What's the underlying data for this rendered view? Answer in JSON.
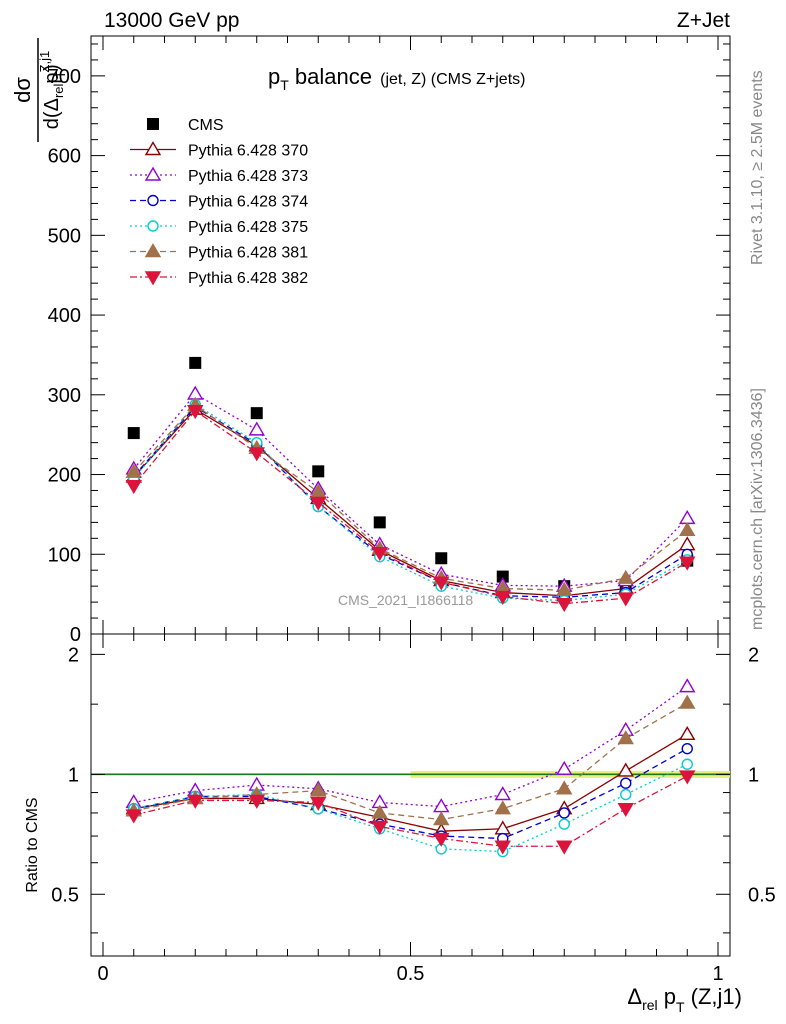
{
  "header": {
    "energy_label": "13000 GeV pp",
    "process_label": "Z+Jet"
  },
  "side_labels": {
    "rivet": "Rivet 3.1.10, ≥ 2.5M events",
    "mcplots": "mcplots.cern.ch [arXiv:1306.3436]"
  },
  "plot_title": {
    "main": "p",
    "main_sub": "T",
    "main_rest": " balance",
    "small": "(jet, Z) (CMS Z+jets)"
  },
  "watermark": "CMS_2021_I1866118",
  "top_ylabel": {
    "num": "dσ",
    "den_pre": "d(Δ",
    "den_sub": "rel",
    "den_mid": "p",
    "den_sub2": "T",
    "den_sup": "Z,j1",
    "den_end": ")"
  },
  "bottom_ylabel": "Ratio to CMS",
  "xlabel": {
    "pre": "Δ",
    "sub": "rel",
    "mid": " p",
    "sub2": "T",
    "end": " (Z,j1)"
  },
  "colors": {
    "cms": "#000000",
    "p370": "#8b0000",
    "p373": "#9400d3",
    "p374": "#0000cd",
    "p375": "#00ced1",
    "p381": "#a0714a",
    "p382": "#dc143c",
    "band": "#e5f07a"
  },
  "chart_data": [
    {
      "type": "line",
      "panel": "main",
      "x": [
        0.05,
        0.15,
        0.25,
        0.35,
        0.45,
        0.55,
        0.65,
        0.75,
        0.85,
        0.95
      ],
      "xlim": [
        0,
        1
      ],
      "ylim": [
        0,
        750
      ],
      "yticks": [
        "0",
        "100",
        "200",
        "300",
        "400",
        "500",
        "600",
        "700"
      ],
      "xticks": [
        "0",
        "0.5",
        "1"
      ],
      "series": [
        {
          "name": "CMS",
          "key": "cms",
          "marker": "square-filled",
          "line": "none",
          "values": [
            252,
            340,
            277,
            204,
            140,
            95,
            72,
            60,
            60,
            92
          ]
        },
        {
          "name": "Pythia 6.428 370",
          "key": "p370",
          "marker": "triangle-open",
          "line": "solid",
          "values": [
            197,
            282,
            236,
            170,
            105,
            67,
            52,
            48,
            57,
            112
          ]
        },
        {
          "name": "Pythia 6.428 373",
          "key": "p373",
          "marker": "triangle-open",
          "line": "dotted",
          "values": [
            207,
            301,
            256,
            182,
            112,
            75,
            61,
            60,
            67,
            145
          ]
        },
        {
          "name": "Pythia 6.428 374",
          "key": "p374",
          "marker": "circle-open",
          "line": "dashed",
          "values": [
            198,
            285,
            238,
            160,
            100,
            65,
            48,
            46,
            52,
            100
          ]
        },
        {
          "name": "Pythia 6.428 375",
          "key": "p375",
          "marker": "circle-open",
          "line": "dotted",
          "values": [
            195,
            288,
            240,
            160,
            97,
            60,
            45,
            42,
            50,
            93
          ]
        },
        {
          "name": "Pythia 6.428 381",
          "key": "p381",
          "marker": "triangle-filled",
          "line": "dashed",
          "values": [
            203,
            287,
            233,
            178,
            107,
            70,
            57,
            55,
            70,
            130
          ]
        },
        {
          "name": "Pythia 6.428 382",
          "key": "p382",
          "marker": "triangledown-filled",
          "line": "dashdot",
          "values": [
            186,
            280,
            227,
            165,
            102,
            65,
            47,
            38,
            45,
            90
          ]
        }
      ]
    },
    {
      "type": "line",
      "panel": "ratio",
      "x": [
        0.05,
        0.15,
        0.25,
        0.35,
        0.45,
        0.55,
        0.65,
        0.75,
        0.85,
        0.95
      ],
      "xlim": [
        0,
        1
      ],
      "ylim": [
        0.35,
        2.25
      ],
      "yticks": [
        "0.5",
        "1",
        "2"
      ],
      "ylabel": "Ratio to CMS",
      "series": [
        {
          "name": "Pythia 6.428 370",
          "key": "p370",
          "marker": "triangle-open",
          "line": "solid",
          "values": [
            0.82,
            0.87,
            0.87,
            0.84,
            0.78,
            0.72,
            0.73,
            0.82,
            1.02,
            1.26
          ]
        },
        {
          "name": "Pythia 6.428 373",
          "key": "p373",
          "marker": "triangle-open",
          "line": "dotted",
          "values": [
            0.85,
            0.91,
            0.94,
            0.92,
            0.85,
            0.83,
            0.89,
            1.03,
            1.29,
            1.66
          ]
        },
        {
          "name": "Pythia 6.428 374",
          "key": "p374",
          "marker": "circle-open",
          "line": "dashed",
          "values": [
            0.82,
            0.88,
            0.88,
            0.82,
            0.75,
            0.7,
            0.69,
            0.8,
            0.95,
            1.16
          ]
        },
        {
          "name": "Pythia 6.428 375",
          "key": "p375",
          "marker": "circle-open",
          "line": "dotted",
          "values": [
            0.82,
            0.88,
            0.89,
            0.82,
            0.73,
            0.65,
            0.64,
            0.75,
            0.89,
            1.06
          ]
        },
        {
          "name": "Pythia 6.428 381",
          "key": "p381",
          "marker": "triangle-filled",
          "line": "dashed",
          "values": [
            0.81,
            0.87,
            0.89,
            0.91,
            0.8,
            0.77,
            0.82,
            0.92,
            1.23,
            1.51
          ]
        },
        {
          "name": "Pythia 6.428 382",
          "key": "p382",
          "marker": "triangledown-filled",
          "line": "dashdot",
          "values": [
            0.79,
            0.86,
            0.86,
            0.85,
            0.74,
            0.69,
            0.66,
            0.66,
            0.82,
            0.99
          ]
        }
      ]
    }
  ]
}
